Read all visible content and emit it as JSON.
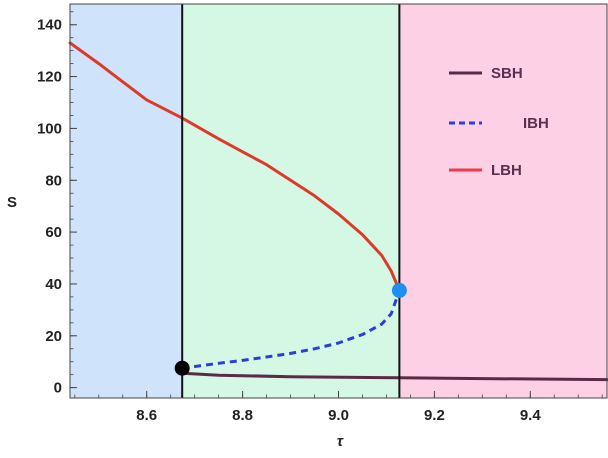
{
  "chart_data": {
    "type": "line",
    "xlabel": "τ",
    "ylabel": "S",
    "xlim": [
      8.44,
      9.56
    ],
    "ylim": [
      -4,
      148
    ],
    "x_ticks": [
      {
        "value": 8.6,
        "label": "8.6"
      },
      {
        "value": 8.8,
        "label": "8.8"
      },
      {
        "value": 9.0,
        "label": "9.0"
      },
      {
        "value": 9.2,
        "label": "9.2"
      },
      {
        "value": 9.4,
        "label": "9.4"
      }
    ],
    "y_ticks": [
      {
        "value": 0,
        "label": "0"
      },
      {
        "value": 20,
        "label": "20"
      },
      {
        "value": 40,
        "label": "40"
      },
      {
        "value": 60,
        "label": "60"
      },
      {
        "value": 80,
        "label": "80"
      },
      {
        "value": 100,
        "label": "100"
      },
      {
        "value": 120,
        "label": "120"
      },
      {
        "value": 140,
        "label": "140"
      }
    ],
    "regions": [
      {
        "x_from": 8.44,
        "x_to": 8.674,
        "color": "#cfe3fb"
      },
      {
        "x_from": 8.674,
        "x_to": 9.127,
        "color": "#d4f8e4"
      },
      {
        "x_from": 9.127,
        "x_to": 9.56,
        "color": "#fdd0e6"
      }
    ],
    "vertical_lines": [
      8.674,
      9.127
    ],
    "series": [
      {
        "name": "LBH",
        "color": "#dd3a2c",
        "style": "solid",
        "points": [
          [
            8.44,
            133
          ],
          [
            8.5,
            125
          ],
          [
            8.55,
            118
          ],
          [
            8.6,
            111
          ],
          [
            8.674,
            104
          ],
          [
            8.75,
            96
          ],
          [
            8.8,
            91
          ],
          [
            8.85,
            86
          ],
          [
            8.9,
            80
          ],
          [
            8.95,
            74
          ],
          [
            9.0,
            67
          ],
          [
            9.05,
            59
          ],
          [
            9.09,
            51
          ],
          [
            9.11,
            45
          ],
          [
            9.127,
            37.5
          ]
        ]
      },
      {
        "name": "IBH",
        "color": "#2a3ed8",
        "style": "dashed",
        "points": [
          [
            8.674,
            7.5
          ],
          [
            8.75,
            9.4
          ],
          [
            8.8,
            10.5
          ],
          [
            8.85,
            11.8
          ],
          [
            8.9,
            13.2
          ],
          [
            8.95,
            15
          ],
          [
            9.0,
            17.2
          ],
          [
            9.05,
            20.5
          ],
          [
            9.09,
            24.5
          ],
          [
            9.11,
            28.5
          ],
          [
            9.127,
            37.5
          ]
        ]
      },
      {
        "name": "SBH",
        "color": "#5c2a48",
        "style": "solid",
        "points": [
          [
            8.674,
            7.5
          ],
          [
            8.68,
            5.5
          ],
          [
            8.75,
            4.8
          ],
          [
            8.9,
            4.2
          ],
          [
            9.127,
            3.8
          ],
          [
            9.3,
            3.5
          ],
          [
            9.56,
            3.1
          ]
        ]
      }
    ],
    "critical_points": [
      {
        "x": 8.674,
        "y": 7.5,
        "color": "#000000"
      },
      {
        "x": 9.127,
        "y": 37.5,
        "color": "#1f8ef1"
      }
    ],
    "legend": {
      "placement": "top-right",
      "entries": [
        {
          "name": "SBH",
          "color": "#5c2a48",
          "style": "solid"
        },
        {
          "name": "IBH",
          "color": "#2a3ed8",
          "style": "dashed"
        },
        {
          "name": "LBH",
          "color": "#ee3b4a",
          "style": "solid"
        }
      ]
    }
  }
}
